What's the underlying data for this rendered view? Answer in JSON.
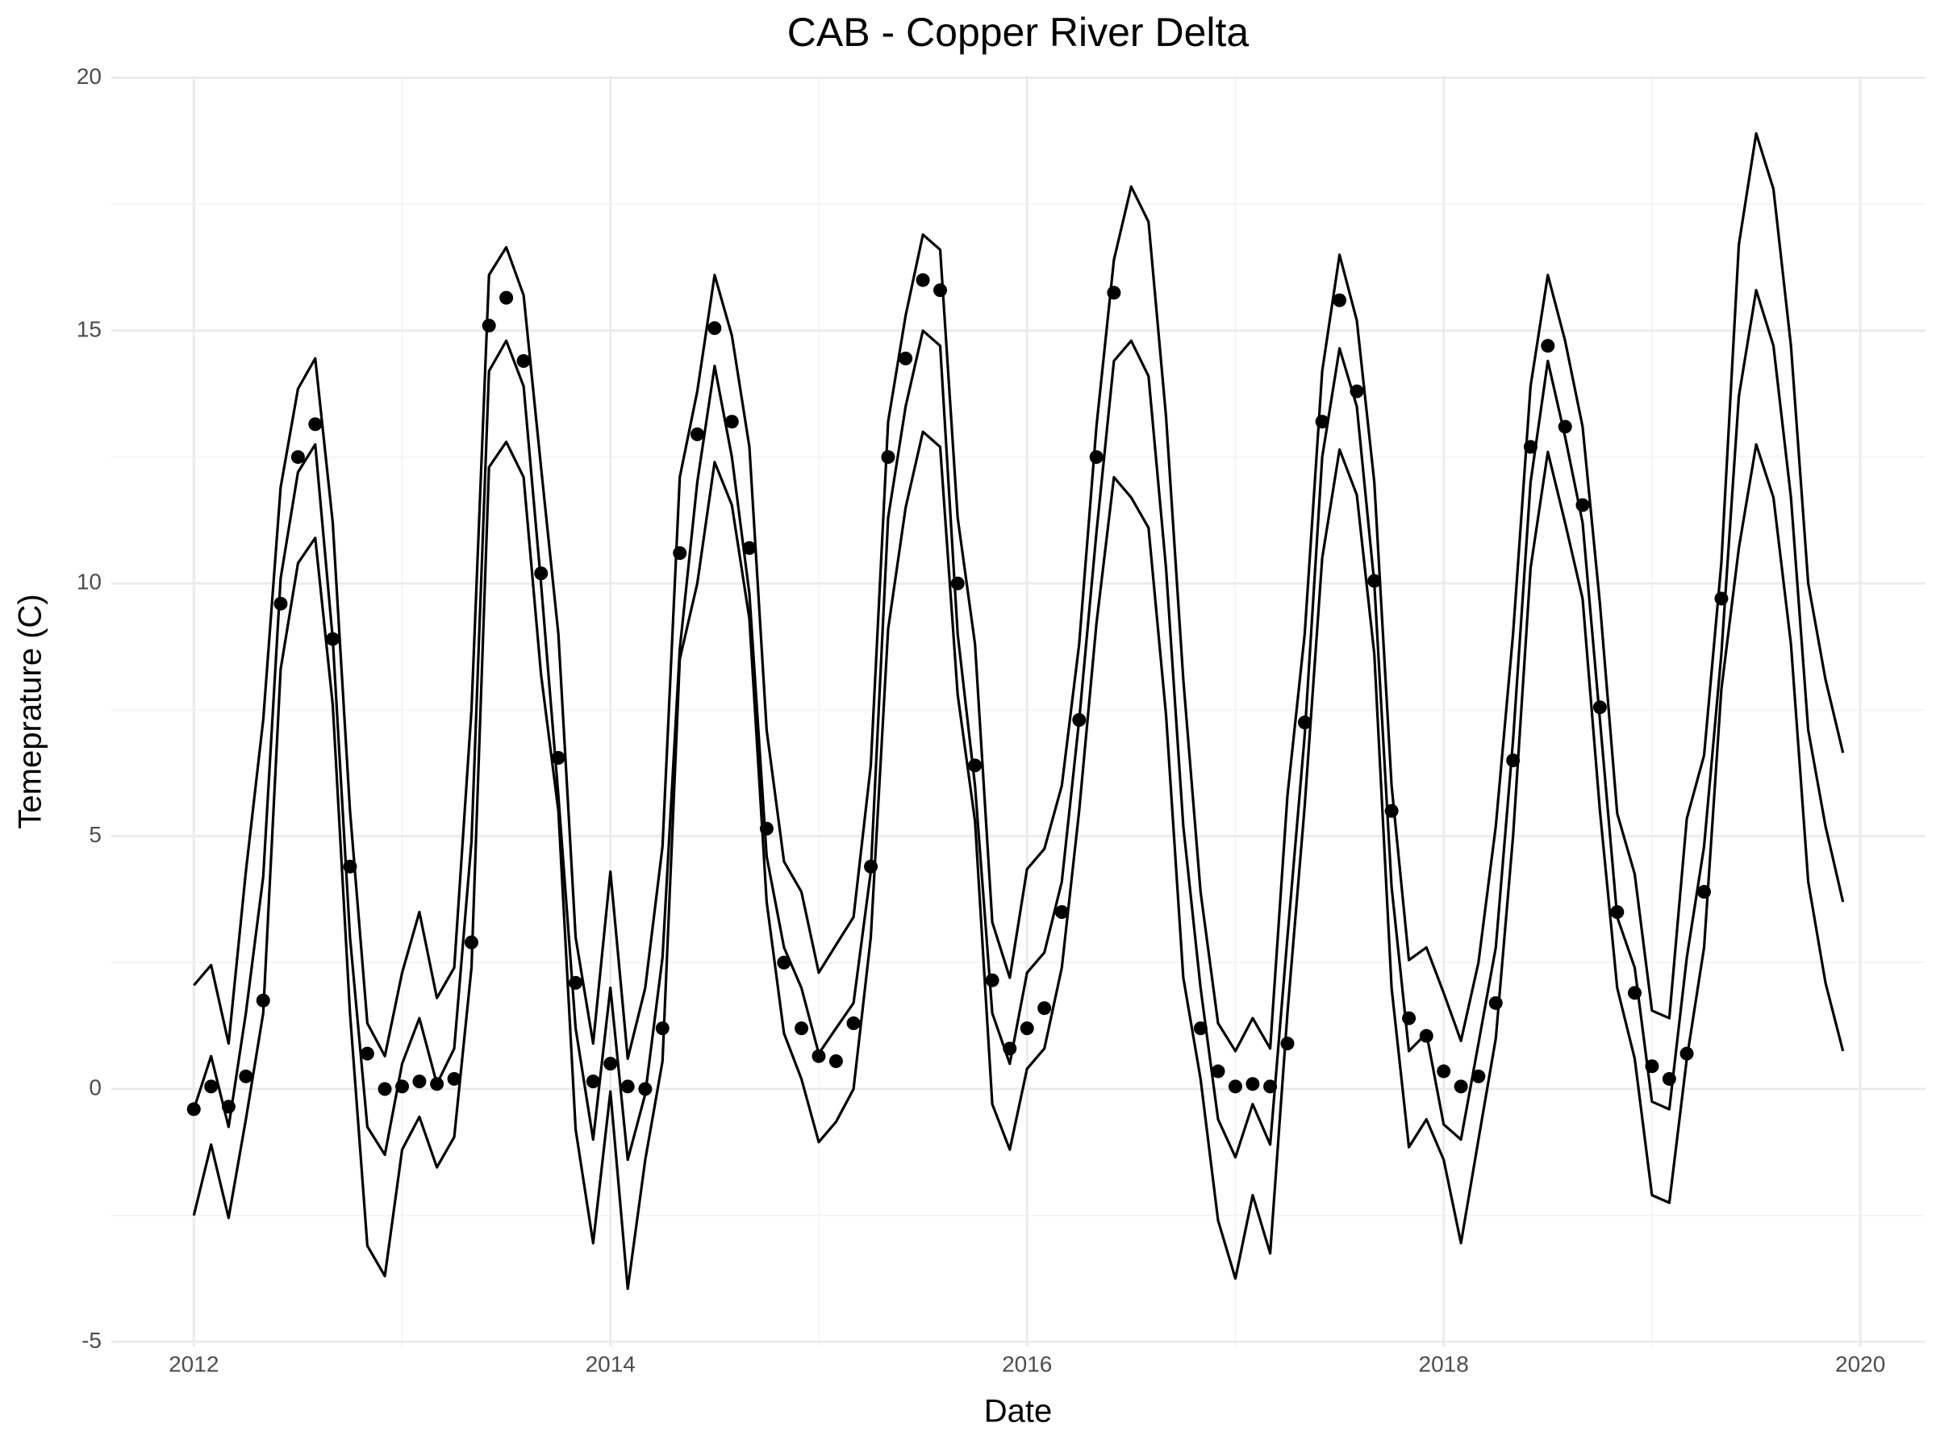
{
  "chart_data": {
    "type": "line",
    "title": "CAB - Copper River Delta",
    "x_label": "Date",
    "y_label": "Temeprature (C)",
    "x": [
      2012,
      2012.083,
      2012.167,
      2012.25,
      2012.333,
      2012.417,
      2012.5,
      2012.583,
      2012.667,
      2012.75,
      2012.833,
      2012.917,
      2013,
      2013.083,
      2013.167,
      2013.25,
      2013.333,
      2013.417,
      2013.5,
      2013.583,
      2013.667,
      2013.75,
      2013.833,
      2013.917,
      2014,
      2014.083,
      2014.167,
      2014.25,
      2014.333,
      2014.417,
      2014.5,
      2014.583,
      2014.667,
      2014.75,
      2014.833,
      2014.917,
      2015,
      2015.083,
      2015.167,
      2015.25,
      2015.333,
      2015.417,
      2015.5,
      2015.583,
      2015.667,
      2015.75,
      2015.833,
      2015.917,
      2016,
      2016.083,
      2016.167,
      2016.25,
      2016.333,
      2016.417,
      2016.5,
      2016.583,
      2016.667,
      2016.75,
      2016.833,
      2016.917,
      2017,
      2017.083,
      2017.167,
      2017.25,
      2017.333,
      2017.417,
      2017.5,
      2017.583,
      2017.667,
      2017.75,
      2017.833,
      2017.917,
      2018,
      2018.083,
      2018.167,
      2018.25,
      2018.333,
      2018.417,
      2018.5,
      2018.583,
      2018.667,
      2018.75,
      2018.833,
      2018.917,
      2019,
      2019.083,
      2019.167,
      2019.25,
      2019.333,
      2019.417,
      2019.5,
      2019.583,
      2019.667,
      2019.75,
      2019.833,
      2019.917
    ],
    "series": [
      {
        "kind": "line",
        "color": "#000000",
        "values": [
          2.05,
          2.45,
          0.9,
          4.3,
          7.3,
          11.9,
          13.85,
          14.45,
          11.2,
          5.5,
          1.3,
          0.65,
          2.3,
          3.5,
          1.8,
          2.4,
          7.5,
          16.1,
          16.65,
          15.7,
          12.3,
          9.0,
          3.0,
          0.9,
          4.3,
          0.6,
          2.0,
          4.8,
          12.1,
          13.8,
          16.1,
          14.9,
          12.7,
          7.1,
          4.5,
          3.9,
          2.3,
          2.85,
          3.4,
          6.4,
          13.2,
          15.3,
          16.9,
          16.6,
          11.3,
          8.8,
          3.3,
          2.2,
          4.35,
          4.75,
          6.0,
          8.8,
          13.1,
          16.4,
          17.85,
          17.15,
          13.3,
          8.1,
          3.9,
          1.3,
          0.75,
          1.4,
          0.8,
          5.8,
          9.0,
          14.2,
          16.5,
          15.2,
          12.0,
          6.0,
          2.55,
          2.8,
          1.9,
          0.95,
          2.5,
          5.2,
          9.0,
          13.9,
          16.1,
          14.8,
          13.1,
          9.6,
          5.45,
          4.25,
          1.55,
          1.4,
          5.35,
          6.6,
          10.4,
          16.7,
          18.9,
          17.8,
          14.7,
          10.0,
          8.1,
          6.65
        ]
      },
      {
        "kind": "line",
        "color": "#000000",
        "values": [
          -0.4,
          0.65,
          -0.75,
          1.5,
          4.2,
          10.1,
          12.2,
          12.75,
          8.9,
          3.0,
          -0.75,
          -1.3,
          0.5,
          1.4,
          0.1,
          0.8,
          4.9,
          14.2,
          14.8,
          13.9,
          10.0,
          5.8,
          1.2,
          -1.0,
          2.0,
          -1.4,
          -0.1,
          2.6,
          8.7,
          12.0,
          14.3,
          12.5,
          9.8,
          4.6,
          2.8,
          2.0,
          0.7,
          1.2,
          1.7,
          4.3,
          11.3,
          13.5,
          15.0,
          14.7,
          9.0,
          6.0,
          1.5,
          0.5,
          2.3,
          2.7,
          4.1,
          7.3,
          11.0,
          14.4,
          14.8,
          14.1,
          10.3,
          5.2,
          2.0,
          -0.6,
          -1.35,
          -0.3,
          -1.1,
          3.0,
          7.0,
          12.5,
          14.65,
          13.5,
          10.0,
          4.0,
          0.75,
          1.1,
          -0.7,
          -1.0,
          0.9,
          2.8,
          6.9,
          12.0,
          14.4,
          12.9,
          11.2,
          7.3,
          3.4,
          2.4,
          -0.25,
          -0.4,
          2.6,
          4.8,
          8.6,
          13.7,
          15.8,
          14.7,
          11.7,
          7.1,
          5.2,
          3.7
        ]
      },
      {
        "kind": "line",
        "color": "#000000",
        "values": [
          -2.5,
          -1.1,
          -2.55,
          -0.6,
          1.5,
          8.3,
          10.4,
          10.9,
          7.6,
          1.5,
          -3.1,
          -3.7,
          -1.2,
          -0.55,
          -1.55,
          -0.95,
          2.4,
          12.3,
          12.8,
          12.1,
          8.2,
          5.5,
          -0.8,
          -3.05,
          -0.05,
          -3.95,
          -1.4,
          0.55,
          8.5,
          10.0,
          12.4,
          11.55,
          9.3,
          3.7,
          1.1,
          0.2,
          -1.05,
          -0.65,
          0.0,
          3.0,
          9.1,
          11.5,
          13.0,
          12.7,
          7.8,
          5.3,
          -0.3,
          -1.2,
          0.4,
          0.8,
          2.4,
          5.5,
          9.2,
          12.1,
          11.7,
          11.1,
          7.4,
          2.2,
          0.2,
          -2.6,
          -3.75,
          -2.1,
          -3.25,
          1.5,
          5.6,
          10.5,
          12.65,
          11.75,
          8.6,
          2.0,
          -1.15,
          -0.6,
          -1.4,
          -3.05,
          -1.0,
          1.0,
          5.0,
          10.3,
          12.6,
          11.2,
          9.7,
          5.5,
          2.0,
          0.6,
          -2.1,
          -2.25,
          0.6,
          2.8,
          7.9,
          10.7,
          12.75,
          11.7,
          8.8,
          4.1,
          2.1,
          0.75
        ]
      },
      {
        "kind": "point",
        "color": "#000000",
        "values": [
          -0.4,
          0.05,
          -0.35,
          0.25,
          1.75,
          9.6,
          12.5,
          13.15,
          8.9,
          4.4,
          0.7,
          0.0,
          0.05,
          0.15,
          0.1,
          0.2,
          2.9,
          15.1,
          15.65,
          14.4,
          10.2,
          6.55,
          2.1,
          0.15,
          0.5,
          0.05,
          0.0,
          1.2,
          10.6,
          12.95,
          15.05,
          13.2,
          10.7,
          5.15,
          2.5,
          1.2,
          0.65,
          0.55,
          1.3,
          4.4,
          12.5,
          14.45,
          16.0,
          15.8,
          10.0,
          6.4,
          2.15,
          0.8,
          1.2,
          1.6,
          3.5,
          7.3,
          12.5,
          15.75,
          null,
          null,
          null,
          null,
          1.2,
          0.35,
          0.05,
          0.1,
          0.05,
          0.9,
          7.25,
          13.2,
          15.6,
          13.8,
          10.05,
          5.5,
          1.4,
          1.05,
          0.35,
          0.05,
          0.25,
          1.7,
          6.5,
          12.7,
          14.7,
          13.1,
          11.55,
          7.55,
          3.5,
          1.9,
          0.45,
          0.2,
          0.7,
          3.9,
          9.7,
          null,
          null,
          null,
          null,
          null,
          null,
          null
        ]
      }
    ],
    "xlim": [
      2011.604,
      2020.313
    ],
    "xticks": [
      2012,
      2014,
      2016,
      2018,
      2020
    ],
    "ylim": [
      -5.09,
      20.04
    ],
    "yticks": [
      -5,
      0,
      5,
      10,
      15,
      20
    ],
    "grid": true,
    "minor_grid": true
  }
}
